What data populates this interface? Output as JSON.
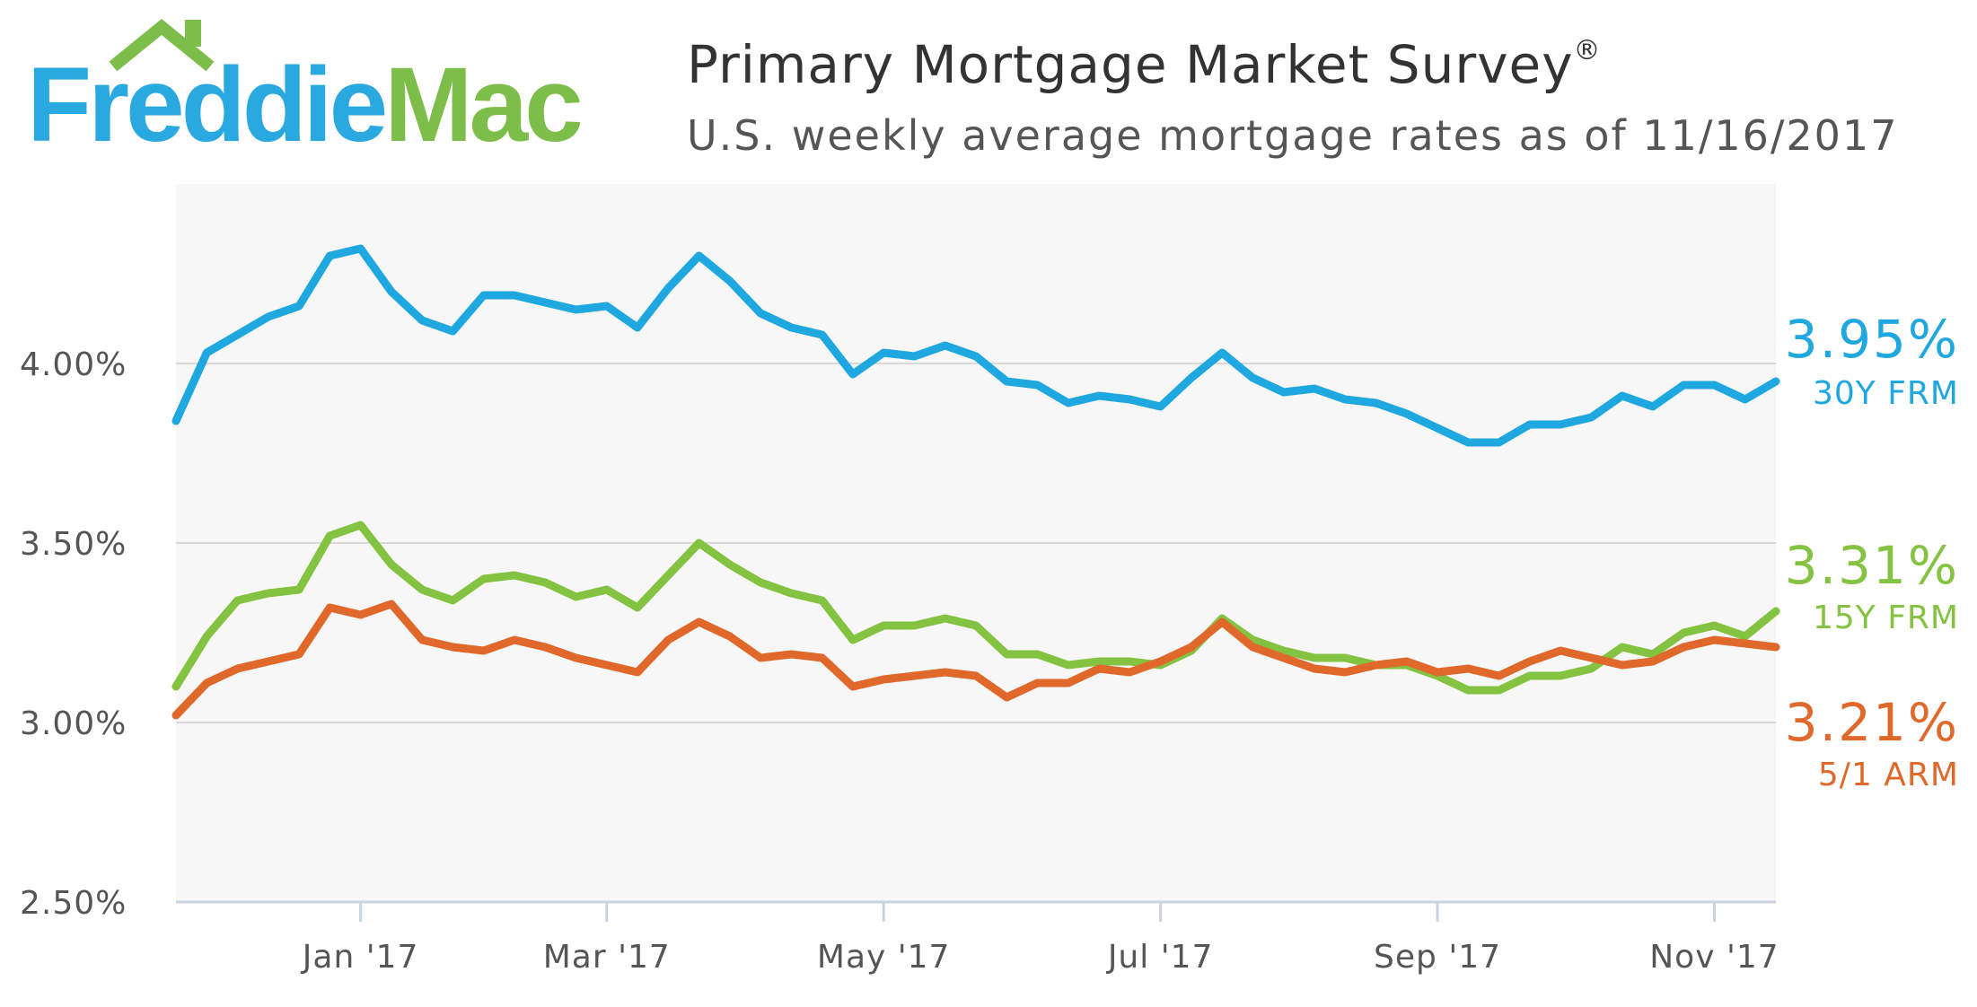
{
  "logo": {
    "part1": "Freddie",
    "part2": "Mac"
  },
  "header": {
    "title": "Primary Mortgage Market Survey",
    "title_mark": "®",
    "subtitle": "U.S. weekly average mortgage rates as of 11/16/2017"
  },
  "colors": {
    "frm30": "#1fa7e0",
    "frm15": "#84c341",
    "arm51": "#e0682a",
    "plot_bg": "#f7f7f7",
    "grid": "#d9d9d9"
  },
  "chart_data": {
    "type": "line",
    "title": "Primary Mortgage Market Survey",
    "subtitle": "U.S. weekly average mortgage rates as of 11/16/2017",
    "xlabel": "",
    "ylabel": "",
    "ylim": [
      2.5,
      4.5
    ],
    "y_ticks": [
      2.5,
      3.0,
      3.5,
      4.0
    ],
    "y_tick_labels": [
      "2.50%",
      "3.00%",
      "3.50%",
      "4.00%"
    ],
    "x_range": [
      0,
      52
    ],
    "x_ticks": [
      6,
      14,
      23,
      32,
      41,
      50
    ],
    "x_tick_labels": [
      "Jan '17",
      "Mar '17",
      "May '17",
      "Jul '17",
      "Sep '17",
      "Nov '17"
    ],
    "grid": true,
    "series": [
      {
        "key": "frm30",
        "name": "30Y FRM",
        "last_label": "3.95%",
        "values": [
          3.84,
          4.03,
          4.08,
          4.13,
          4.16,
          4.3,
          4.32,
          4.2,
          4.12,
          4.09,
          4.19,
          4.19,
          4.17,
          4.15,
          4.16,
          4.1,
          4.21,
          4.3,
          4.23,
          4.14,
          4.1,
          4.08,
          3.97,
          4.03,
          4.02,
          4.05,
          4.02,
          3.95,
          3.94,
          3.89,
          3.91,
          3.9,
          3.88,
          3.96,
          4.03,
          3.96,
          3.92,
          3.93,
          3.9,
          3.89,
          3.86,
          3.82,
          3.78,
          3.78,
          3.83,
          3.83,
          3.85,
          3.91,
          3.88,
          3.94,
          3.94,
          3.9,
          3.95
        ]
      },
      {
        "key": "frm15",
        "name": "15Y FRM",
        "last_label": "3.31%",
        "values": [
          3.1,
          3.24,
          3.34,
          3.36,
          3.37,
          3.52,
          3.55,
          3.44,
          3.37,
          3.34,
          3.4,
          3.41,
          3.39,
          3.35,
          3.37,
          3.32,
          3.41,
          3.5,
          3.44,
          3.39,
          3.36,
          3.34,
          3.23,
          3.27,
          3.27,
          3.29,
          3.27,
          3.19,
          3.19,
          3.16,
          3.17,
          3.17,
          3.16,
          3.2,
          3.29,
          3.23,
          3.2,
          3.18,
          3.18,
          3.16,
          3.16,
          3.13,
          3.09,
          3.09,
          3.13,
          3.13,
          3.15,
          3.21,
          3.19,
          3.25,
          3.27,
          3.24,
          3.31
        ]
      },
      {
        "key": "arm51",
        "name": "5/1 ARM",
        "last_label": "3.21%",
        "values": [
          3.02,
          3.11,
          3.15,
          3.17,
          3.19,
          3.32,
          3.3,
          3.33,
          3.23,
          3.21,
          3.2,
          3.23,
          3.21,
          3.18,
          3.16,
          3.14,
          3.23,
          3.28,
          3.24,
          3.18,
          3.19,
          3.18,
          3.1,
          3.12,
          3.13,
          3.14,
          3.13,
          3.07,
          3.11,
          3.11,
          3.15,
          3.14,
          3.17,
          3.21,
          3.28,
          3.21,
          3.18,
          3.15,
          3.14,
          3.16,
          3.17,
          3.14,
          3.15,
          3.13,
          3.17,
          3.2,
          3.18,
          3.16,
          3.17,
          3.21,
          3.23,
          3.22,
          3.21
        ]
      }
    ]
  }
}
